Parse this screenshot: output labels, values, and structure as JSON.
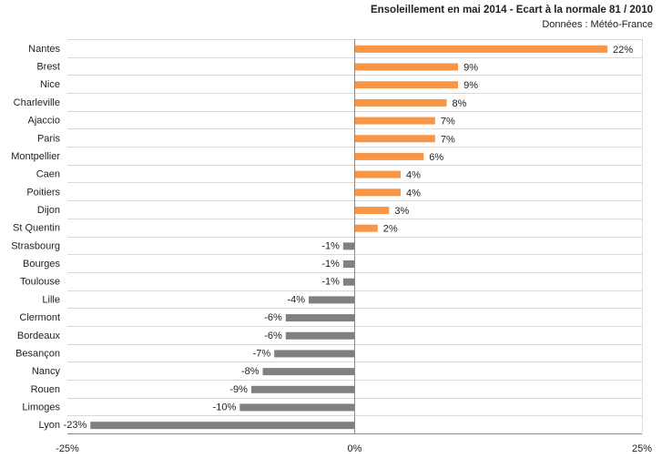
{
  "chart_data": {
    "type": "bar",
    "orientation": "horizontal",
    "title": "Ensoleillement en mai 2014 - Ecart à la normale 81 / 2010",
    "subtitle": "Données : Météo-France",
    "categories": [
      "Nantes",
      "Brest",
      "Nice",
      "Charleville",
      "Ajaccio",
      "Paris",
      "Montpellier",
      "Caen",
      "Poitiers",
      "Dijon",
      "St Quentin",
      "Strasbourg",
      "Bourges",
      "Toulouse",
      "Lille",
      "Clermont",
      "Bordeaux",
      "Besançon",
      "Nancy",
      "Rouen",
      "Limoges",
      "Lyon"
    ],
    "values": [
      22,
      9,
      9,
      8,
      7,
      7,
      6,
      4,
      4,
      3,
      2,
      -1,
      -1,
      -1,
      -4,
      -6,
      -6,
      -7,
      -8,
      -9,
      -10,
      -23
    ],
    "value_labels": [
      "22%",
      "9%",
      "9%",
      "8%",
      "7%",
      "7%",
      "6%",
      "4%",
      "4%",
      "3%",
      "2%",
      "-1%",
      "-1%",
      "-1%",
      "-4%",
      "-6%",
      "-6%",
      "-7%",
      "-8%",
      "-9%",
      "-10%",
      "-23%"
    ],
    "xlim": [
      -25,
      25
    ],
    "x_ticks": [
      "-25%",
      "0%",
      "25%"
    ],
    "grid": true,
    "colors": {
      "positive": "#f79646",
      "negative": "#808080",
      "grid": "#d9d9d9",
      "axis": "#888888"
    }
  }
}
